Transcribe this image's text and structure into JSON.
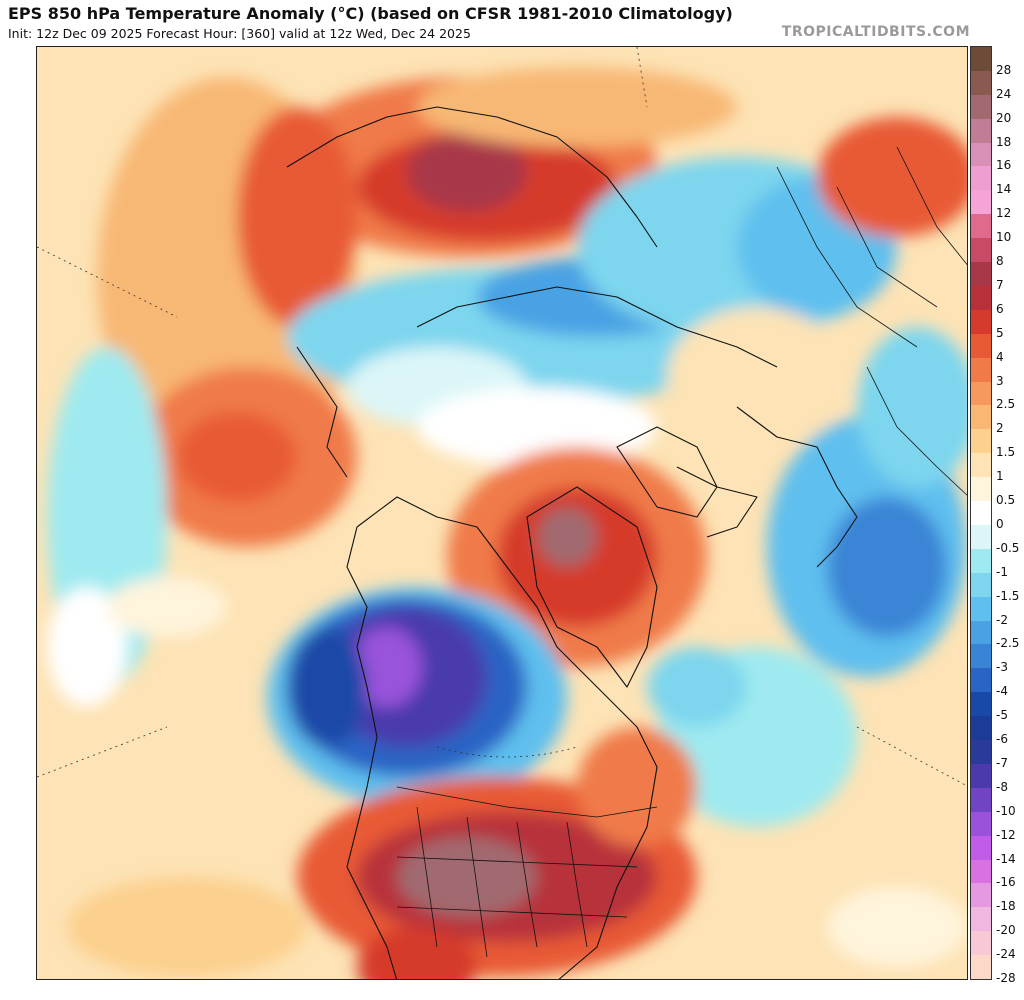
{
  "header": {
    "title": "EPS 850 hPa Temperature Anomaly (°C) (based on CFSR 1981-2010 Climatology)",
    "subtitle": "Init: 12z Dec 09 2025   Forecast Hour: [360]   valid at 12z Wed, Dec 24 2025",
    "brand": "TROPICALTIDBITS.COM"
  },
  "colorbar": {
    "levels": [
      {
        "label": "28",
        "color": "#6e4a38"
      },
      {
        "label": "24",
        "color": "#8a5a50"
      },
      {
        "label": "20",
        "color": "#a06a70"
      },
      {
        "label": "18",
        "color": "#c07d96"
      },
      {
        "label": "16",
        "color": "#d990b6"
      },
      {
        "label": "14",
        "color": "#ee9ed0"
      },
      {
        "label": "12",
        "color": "#f6a4d8"
      },
      {
        "label": "10",
        "color": "#e06a8c"
      },
      {
        "label": "8",
        "color": "#c84a64"
      },
      {
        "label": "7",
        "color": "#a83848"
      },
      {
        "label": "6",
        "color": "#b8303a"
      },
      {
        "label": "5",
        "color": "#d63a2c"
      },
      {
        "label": "4",
        "color": "#e85a36"
      },
      {
        "label": "3",
        "color": "#f07a48"
      },
      {
        "label": "2.5",
        "color": "#f59a5c"
      },
      {
        "label": "2",
        "color": "#f8b874"
      },
      {
        "label": "1.5",
        "color": "#fcd08e"
      },
      {
        "label": "1",
        "color": "#fde3b5"
      },
      {
        "label": "0.5",
        "color": "#fff4dc"
      },
      {
        "label": "0",
        "color": "#ffffff"
      },
      {
        "label": "-0.5",
        "color": "#dcf6f8"
      },
      {
        "label": "-1",
        "color": "#9eeaf0"
      },
      {
        "label": "-1.5",
        "color": "#7dd6ee"
      },
      {
        "label": "-2",
        "color": "#5fbfee"
      },
      {
        "label": "-2.5",
        "color": "#4aa2e4"
      },
      {
        "label": "-3",
        "color": "#3a84d6"
      },
      {
        "label": "-4",
        "color": "#2a64c4"
      },
      {
        "label": "-5",
        "color": "#1a48a8"
      },
      {
        "label": "-6",
        "color": "#1c3a98"
      },
      {
        "label": "-7",
        "color": "#2a3a9a"
      },
      {
        "label": "-8",
        "color": "#4a3aac"
      },
      {
        "label": "-10",
        "color": "#7044c4"
      },
      {
        "label": "-12",
        "color": "#9a52dc"
      },
      {
        "label": "-14",
        "color": "#c05ce8"
      },
      {
        "label": "-16",
        "color": "#d872e2"
      },
      {
        "label": "-18",
        "color": "#e49ae0"
      },
      {
        "label": "-20",
        "color": "#f0b8e0"
      },
      {
        "label": "-24",
        "color": "#f8c8d4"
      },
      {
        "label": "-28",
        "color": "#fcd8c8"
      }
    ]
  }
}
